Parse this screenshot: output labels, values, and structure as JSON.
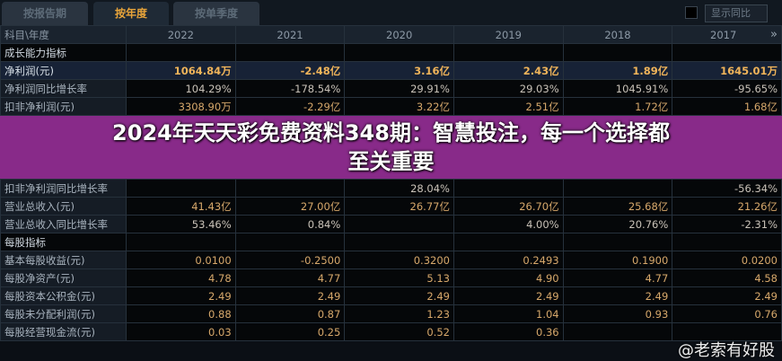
{
  "tabs": [
    "按报告期",
    "按年度",
    "按单季度"
  ],
  "active_tab": "按年度",
  "show_yoy_label": "显示同比",
  "header": {
    "label": "科目\\年度",
    "years": [
      "2022",
      "2021",
      "2020",
      "2019",
      "2018",
      "2017"
    ],
    "next_icon": "»"
  },
  "rows": [
    {
      "label": "成长能力指标",
      "type": "section",
      "values": [
        "",
        "",
        "",
        "",
        "",
        ""
      ]
    },
    {
      "label": "净利润(元)",
      "type": "hl",
      "values": [
        "1064.84万",
        "-2.48亿",
        "3.16亿",
        "2.43亿",
        "1.89亿",
        "1645.01万"
      ]
    },
    {
      "label": "净利润同比增长率",
      "type": "pct",
      "values": [
        "104.29%",
        "-178.54%",
        "29.91%",
        "29.03%",
        "1045.91%",
        "-95.65%"
      ]
    },
    {
      "label": "扣非净利润(元)",
      "type": "",
      "values": [
        "3308.90万",
        "-2.29亿",
        "3.22亿",
        "2.51亿",
        "1.72亿",
        "1.68亿"
      ]
    },
    {
      "label": "扣非净利润同比增长率",
      "type": "pct",
      "values": [
        "",
        "",
        "28.04%",
        "",
        "",
        "-56.34%"
      ]
    },
    {
      "label": "营业总收入(元)",
      "type": "",
      "values": [
        "41.43亿",
        "27.00亿",
        "26.77亿",
        "26.70亿",
        "25.68亿",
        "21.26亿"
      ]
    },
    {
      "label": "营业总收入同比增长率",
      "type": "pct",
      "values": [
        "53.46%",
        "0.84%",
        "",
        "4.00%",
        "20.76%",
        "-2.31%"
      ]
    },
    {
      "label": "每股指标",
      "type": "section",
      "values": [
        "",
        "",
        "",
        "",
        "",
        ""
      ]
    },
    {
      "label": "基本每股收益(元)",
      "type": "",
      "values": [
        "0.0100",
        "-0.2500",
        "0.3200",
        "0.2493",
        "0.1900",
        "0.0200"
      ]
    },
    {
      "label": "每股净资产(元)",
      "type": "",
      "values": [
        "4.78",
        "4.77",
        "5.13",
        "4.90",
        "4.77",
        "4.58"
      ]
    },
    {
      "label": "每股资本公积金(元)",
      "type": "",
      "values": [
        "2.49",
        "2.49",
        "2.49",
        "2.49",
        "2.49",
        "2.49"
      ]
    },
    {
      "label": "每股未分配利润(元)",
      "type": "",
      "values": [
        "0.88",
        "0.87",
        "1.23",
        "1.04",
        "0.93",
        "0.76"
      ]
    },
    {
      "label": "每股经营现金流(元)",
      "type": "",
      "values": [
        "0.03",
        "0.25",
        "0.52",
        "0.36",
        "",
        ""
      ]
    }
  ],
  "banner": {
    "line1": "2024年天天彩免费资料348期：智慧投注，每一个选择都",
    "line2": "至关重要"
  },
  "watermark": "@老索有好股"
}
